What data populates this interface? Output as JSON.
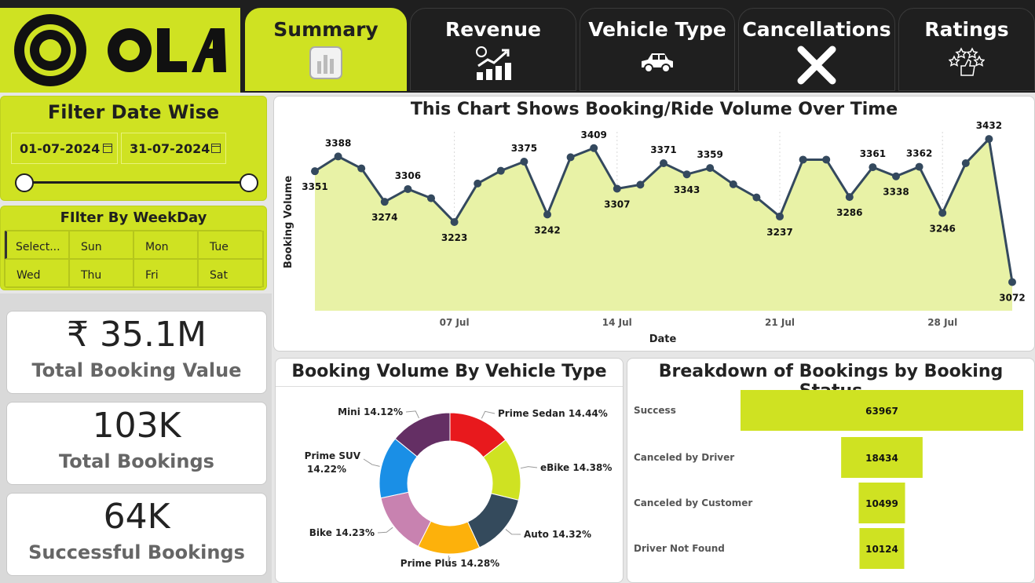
{
  "brand": {
    "name": "OLA",
    "accent": "#cfe222",
    "dark": "#1f1f1f"
  },
  "tabs": [
    {
      "label": "Summary",
      "icon": "bar-chart-icon",
      "active": true
    },
    {
      "label": "Revenue",
      "icon": "revenue-growth-icon",
      "active": false
    },
    {
      "label": "Vehicle Type",
      "icon": "car-icon",
      "active": false
    },
    {
      "label": "Cancellations",
      "icon": "cross-icon",
      "active": false
    },
    {
      "label": "Ratings",
      "icon": "rating-stars-icon",
      "active": false
    }
  ],
  "date_filter": {
    "title": "Filter Date Wise",
    "start": "01-07-2024",
    "end": "31-07-2024"
  },
  "weekday_filter": {
    "title": "FIlter By WeekDay",
    "options": [
      "Select...",
      "Sun",
      "Mon",
      "Tue",
      "Wed",
      "Thu",
      "Fri",
      "Sat"
    ],
    "selected": "Select..."
  },
  "kpis": [
    {
      "value": "₹ 35.1M",
      "label": "Total Booking Value"
    },
    {
      "value": "103K",
      "label": "Total Bookings"
    },
    {
      "value": "64K",
      "label": "Successful Bookings"
    }
  ],
  "chart_data": [
    {
      "type": "area",
      "title": "This Chart Shows Booking/Ride Volume Over Time",
      "xlabel": "Date",
      "ylabel": "Booking Volume",
      "x_ticks": [
        "07 Jul",
        "14 Jul",
        "21 Jul",
        "28 Jul"
      ],
      "x": [
        1,
        2,
        3,
        4,
        5,
        6,
        7,
        8,
        9,
        10,
        11,
        12,
        13,
        14,
        15,
        16,
        17,
        18,
        19,
        20,
        21,
        22,
        23,
        24,
        25,
        26,
        27,
        28,
        29,
        30,
        31
      ],
      "values": [
        3351,
        3388,
        3358,
        3274,
        3306,
        3283,
        3223,
        3320,
        3352,
        3375,
        3242,
        3386,
        3409,
        3307,
        3317,
        3371,
        3343,
        3359,
        3318,
        3285,
        3237,
        3380,
        3380,
        3286,
        3361,
        3338,
        3362,
        3246,
        3371,
        3432,
        3072
      ],
      "labeled_points": {
        "1": "3351",
        "2": "3388",
        "4": "3274",
        "5": "3306",
        "7": "3223",
        "10": "3375",
        "11": "3242",
        "13": "3409",
        "14": "3307",
        "16": "3371",
        "17": "3343",
        "18": "3359",
        "21": "3237",
        "24": "3286",
        "25": "3361",
        "26": "3338",
        "27": "3362",
        "28": "3246",
        "30": "3432",
        "31": "3072"
      },
      "color": "#34495e",
      "fill": "#e8f2a6",
      "grid": "vertical-dotted"
    },
    {
      "type": "pie",
      "title": "Booking Volume By Vehicle Type",
      "slices": [
        {
          "label": "Prime Sedan",
          "value": 14.44,
          "display": "Prime Sedan 14.44%",
          "color": "#e8191d"
        },
        {
          "label": "eBike",
          "value": 14.38,
          "display": "eBike 14.38%",
          "color": "#cfe222"
        },
        {
          "label": "Auto",
          "value": 14.32,
          "display": "Auto 14.32%",
          "color": "#344a5c"
        },
        {
          "label": "Prime Plus",
          "value": 14.28,
          "display": "Prime Plus 14.28%",
          "color": "#fdb10b"
        },
        {
          "label": "Bike",
          "value": 14.23,
          "display": "Bike 14.23%",
          "color": "#c882b0"
        },
        {
          "label": "Prime SUV",
          "value": 14.22,
          "display": [
            "Prime SUV",
            "14.22%"
          ],
          "color": "#1a8fe6"
        },
        {
          "label": "Mini",
          "value": 14.12,
          "display": "Mini 14.12%",
          "color": "#642f64"
        }
      ]
    },
    {
      "type": "bar",
      "title": "Breakdown of Bookings by Booking Status",
      "categories": [
        "Success",
        "Canceled by Driver",
        "Canceled by Customer",
        "Driver Not Found"
      ],
      "values": [
        63967,
        18434,
        10499,
        10124
      ],
      "color": "#cfe222",
      "orientation": "funnel"
    }
  ]
}
